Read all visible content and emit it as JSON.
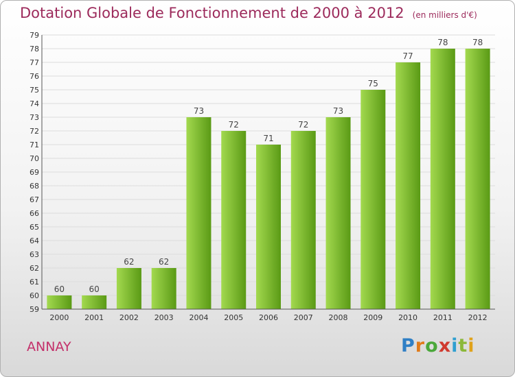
{
  "header": {
    "title": "Dotation Globale de Fonctionnement de 2000 à 2012",
    "subtitle": "(en milliers d'€)"
  },
  "footer": {
    "location": "ANNAY",
    "logo_text": "Proxiti"
  },
  "colors": {
    "bar_light": "#a3d94f",
    "bar_dark": "#5a9a15",
    "title": "#9c2a5b"
  },
  "chart_data": {
    "type": "bar",
    "title": "Dotation Globale de Fonctionnement de 2000 à 2012",
    "subtitle": "(en milliers d'€)",
    "categories": [
      "2000",
      "2001",
      "2002",
      "2003",
      "2004",
      "2005",
      "2006",
      "2007",
      "2008",
      "2009",
      "2010",
      "2011",
      "2012"
    ],
    "values": [
      60,
      60,
      62,
      62,
      73,
      72,
      71,
      72,
      73,
      75,
      77,
      78,
      78
    ],
    "xlabel": "",
    "ylabel": "",
    "ylim": [
      59,
      79
    ],
    "yticks": [
      59,
      60,
      61,
      62,
      63,
      64,
      65,
      66,
      67,
      68,
      69,
      70,
      71,
      72,
      73,
      74,
      75,
      76,
      77,
      78,
      79
    ],
    "grid": true,
    "legend": "none"
  }
}
